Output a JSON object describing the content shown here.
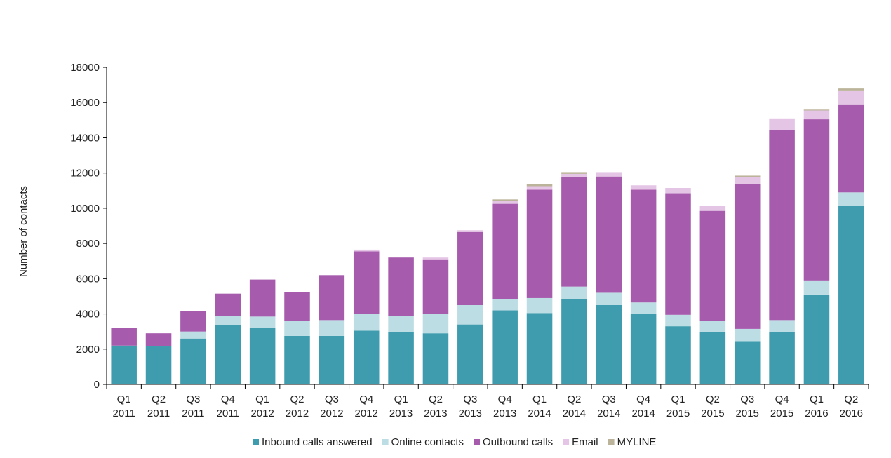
{
  "chart_data": {
    "type": "bar",
    "stacked": true,
    "ylabel": "Number of contacts",
    "ylim": [
      0,
      18000
    ],
    "yticks": [
      0,
      2000,
      4000,
      6000,
      8000,
      10000,
      12000,
      14000,
      16000,
      18000
    ],
    "grid": false,
    "legend_position": "bottom",
    "categories": [
      {
        "quarter": "Q1",
        "year": "2011"
      },
      {
        "quarter": "Q2",
        "year": "2011"
      },
      {
        "quarter": "Q3",
        "year": "2011"
      },
      {
        "quarter": "Q4",
        "year": "2011"
      },
      {
        "quarter": "Q1",
        "year": "2012"
      },
      {
        "quarter": "Q2",
        "year": "2012"
      },
      {
        "quarter": "Q3",
        "year": "2012"
      },
      {
        "quarter": "Q4",
        "year": "2012"
      },
      {
        "quarter": "Q1",
        "year": "2013"
      },
      {
        "quarter": "Q2",
        "year": "2013"
      },
      {
        "quarter": "Q3",
        "year": "2013"
      },
      {
        "quarter": "Q4",
        "year": "2013"
      },
      {
        "quarter": "Q1",
        "year": "2014"
      },
      {
        "quarter": "Q2",
        "year": "2014"
      },
      {
        "quarter": "Q3",
        "year": "2014"
      },
      {
        "quarter": "Q4",
        "year": "2014"
      },
      {
        "quarter": "Q1",
        "year": "2015"
      },
      {
        "quarter": "Q2",
        "year": "2015"
      },
      {
        "quarter": "Q3",
        "year": "2015"
      },
      {
        "quarter": "Q4",
        "year": "2015"
      },
      {
        "quarter": "Q1",
        "year": "2016"
      },
      {
        "quarter": "Q2",
        "year": "2016"
      }
    ],
    "series": [
      {
        "name": "Inbound calls answered",
        "color": "#3f9caf",
        "values": [
          2200,
          2150,
          2600,
          3350,
          3200,
          2750,
          2750,
          3050,
          2950,
          2900,
          3400,
          4200,
          4050,
          4850,
          4500,
          4000,
          3300,
          2950,
          2450,
          2950,
          5100,
          10150
        ]
      },
      {
        "name": "Online contacts",
        "color": "#bcdde4",
        "values": [
          0,
          0,
          400,
          550,
          650,
          850,
          900,
          950,
          950,
          1100,
          1100,
          650,
          850,
          700,
          700,
          650,
          650,
          650,
          700,
          700,
          800,
          750
        ]
      },
      {
        "name": "Outbound calls",
        "color": "#a65bac",
        "values": [
          1000,
          750,
          1150,
          1250,
          2100,
          1650,
          2550,
          3550,
          3300,
          3100,
          4150,
          5400,
          6150,
          6200,
          6600,
          6400,
          6900,
          6250,
          8200,
          10800,
          9150,
          5000
        ]
      },
      {
        "name": "Email",
        "color": "#e4c5e5",
        "values": [
          0,
          0,
          0,
          0,
          0,
          0,
          0,
          100,
          0,
          100,
          100,
          150,
          200,
          200,
          250,
          250,
          300,
          300,
          400,
          650,
          500,
          750
        ]
      },
      {
        "name": "MYLINE",
        "color": "#bcb49a",
        "values": [
          0,
          0,
          0,
          0,
          0,
          0,
          0,
          0,
          0,
          0,
          0,
          100,
          100,
          100,
          0,
          0,
          0,
          0,
          100,
          0,
          50,
          150
        ]
      }
    ]
  }
}
